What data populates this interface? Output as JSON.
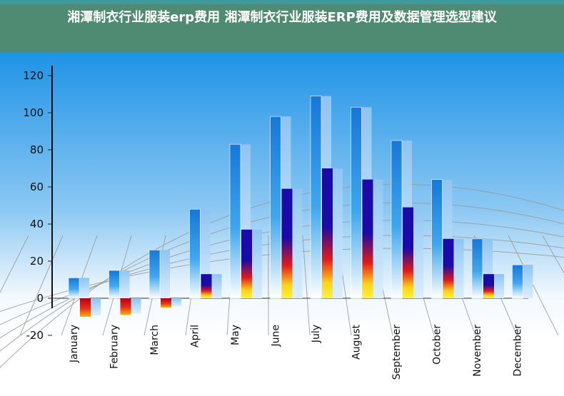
{
  "title": "湘潭制衣行业服装erp费用 湘潭制衣行业服装ERP费用及数据管理选型建议",
  "colors": {
    "header_bg": "#4f8a73",
    "sky_top": "#1f93e6",
    "sky_bottom": "#ffffff"
  },
  "chart_data": {
    "type": "bar",
    "title": "",
    "xlabel": "",
    "ylabel": "",
    "ylim": [
      -20,
      120
    ],
    "yticks": [
      -20,
      0,
      20,
      40,
      60,
      80,
      100,
      120
    ],
    "grid": false,
    "categories": [
      "January",
      "February",
      "March",
      "April",
      "May",
      "June",
      "July",
      "August",
      "September",
      "October",
      "November",
      "December"
    ],
    "series": [
      {
        "values": [
          11,
          15,
          26,
          48,
          83,
          98,
          109,
          103,
          85,
          64,
          32,
          18
        ]
      },
      {
        "values": [
          -10,
          -9,
          -5,
          13,
          37,
          59,
          70,
          64,
          49,
          32,
          13,
          null
        ]
      }
    ]
  }
}
